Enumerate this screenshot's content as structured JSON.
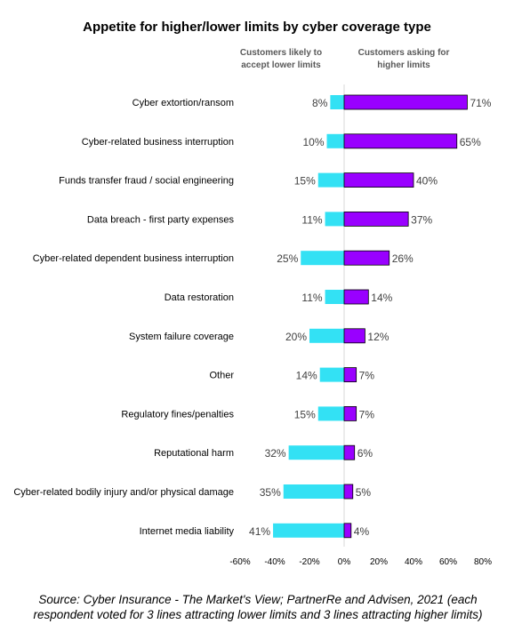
{
  "chart_data": {
    "type": "bar",
    "title": "Appetite for higher/lower limits by cyber coverage type",
    "legend": {
      "lower": "Customers likely to accept lower limits",
      "higher": "Customers asking for higher limits"
    },
    "categories": [
      "Cyber extortion/ransom",
      "Cyber-related business interruption",
      "Funds transfer fraud / social engineering",
      "Data breach - first party expenses",
      "Cyber-related dependent business interruption",
      "Data restoration",
      "System failure coverage",
      "Other",
      "Regulatory fines/penalties",
      "Reputational harm",
      "Cyber-related bodily injury and/or physical damage",
      "Internet media liability"
    ],
    "series": [
      {
        "key": "lower",
        "values": [
          -8,
          -10,
          -15,
          -11,
          -25,
          -11,
          -20,
          -14,
          -15,
          -32,
          -35,
          -41
        ],
        "labels": [
          "8%",
          "10%",
          "15%",
          "11%",
          "25%",
          "11%",
          "20%",
          "14%",
          "15%",
          "32%",
          "35%",
          "41%"
        ]
      },
      {
        "key": "higher",
        "values": [
          71,
          65,
          40,
          37,
          26,
          14,
          12,
          7,
          7,
          6,
          5,
          4
        ],
        "labels": [
          "71%",
          "65%",
          "40%",
          "37%",
          "26%",
          "14%",
          "12%",
          "7%",
          "7%",
          "6%",
          "5%",
          "4%"
        ]
      }
    ],
    "xlim": [
      -60,
      80
    ],
    "xticks": [
      -60,
      -40,
      -20,
      0,
      20,
      40,
      60,
      80
    ],
    "xtick_labels": [
      "-60%",
      "-40%",
      "-20%",
      "0%",
      "20%",
      "40%",
      "60%",
      "80%"
    ],
    "colors": {
      "lower": "#33E1F4",
      "higher": "#9900FF",
      "bar_edge": "#000000"
    }
  },
  "source_note": "Source: Cyber Insurance - The Market's View; PartnerRe and Advisen, 2021 (each respondent voted for 3 lines attracting lower limits and 3 lines attracting higher limits)"
}
